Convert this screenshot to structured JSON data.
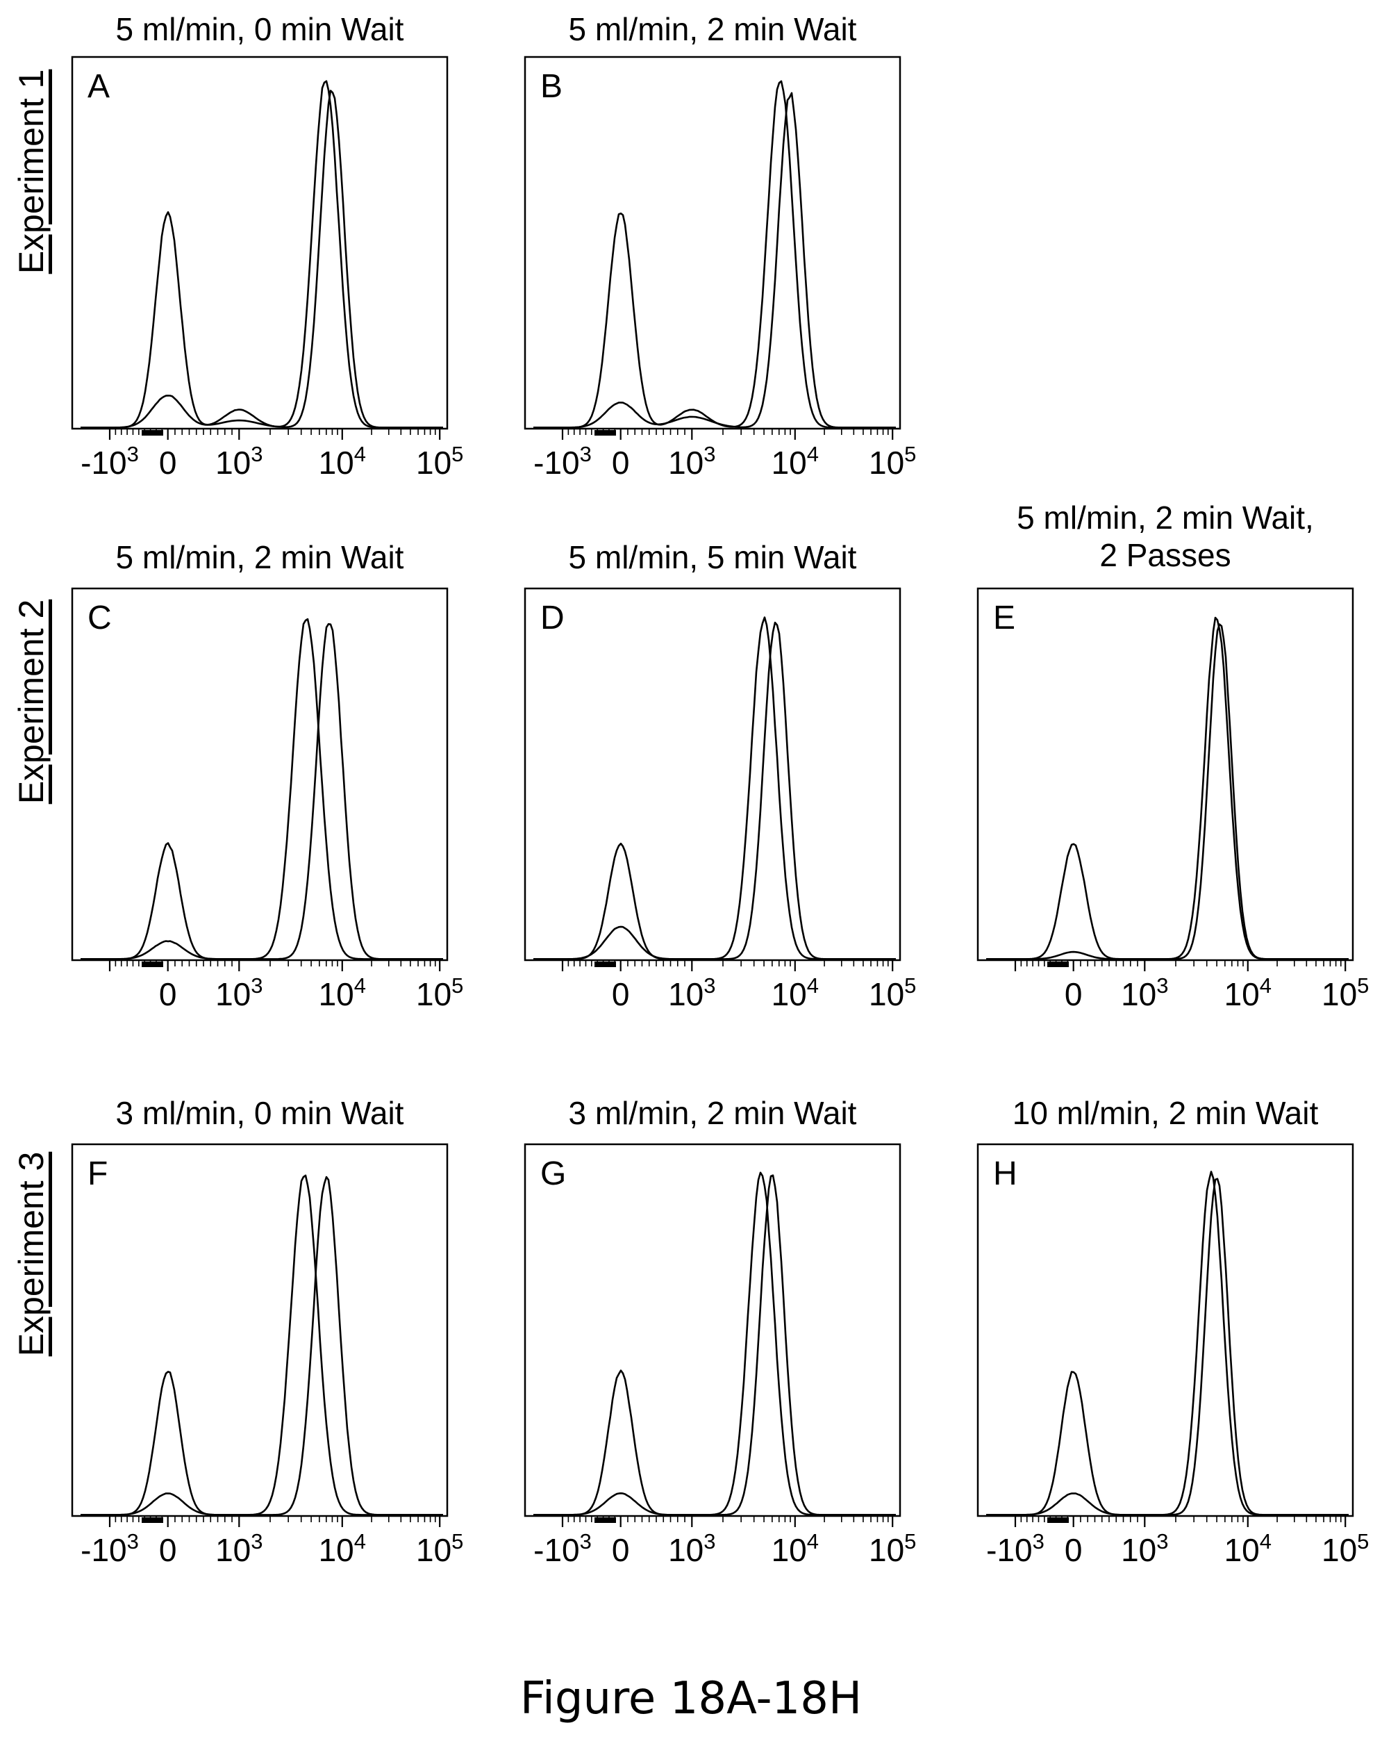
{
  "figure": {
    "caption": "Figure 18A-18H",
    "rows": [
      {
        "label": "Experiment 1"
      },
      {
        "label": "Experiment 2"
      },
      {
        "label": "Experiment 3"
      }
    ]
  },
  "colors": {
    "line": "#000000",
    "background": "#ffffff"
  },
  "chart_data": [
    {
      "type": "line",
      "letter": "A",
      "title": "5 ml/min, 0 min Wait",
      "x_scale": "biexponential",
      "xlim": [
        -2000,
        100000
      ],
      "x_ticks": [
        "-10^3",
        "0",
        "10^3",
        "10^4",
        "10^5"
      ],
      "grid": false,
      "legend": "none",
      "series": [
        {
          "peaks": [
            {
              "x": 0,
              "h": 0.6,
              "w": 0.032
            },
            {
              "x": 1000,
              "h": 0.05,
              "w": 0.04
            },
            {
              "x": 6900,
              "h": 0.97,
              "w": 0.034
            }
          ]
        },
        {
          "peaks": [
            {
              "x": 0,
              "h": 0.09,
              "w": 0.04
            },
            {
              "x": 1000,
              "h": 0.02,
              "w": 0.05
            },
            {
              "x": 8000,
              "h": 0.94,
              "w": 0.032
            }
          ]
        }
      ]
    },
    {
      "type": "line",
      "letter": "B",
      "title": "5 ml/min, 2 min Wait",
      "x_scale": "biexponential",
      "xlim": [
        -2000,
        100000
      ],
      "x_ticks": [
        "-10^3",
        "0",
        "10^3",
        "10^4",
        "10^5"
      ],
      "grid": false,
      "legend": "none",
      "series": [
        {
          "peaks": [
            {
              "x": 0,
              "h": 0.6,
              "w": 0.032
            },
            {
              "x": 1000,
              "h": 0.05,
              "w": 0.04
            },
            {
              "x": 7200,
              "h": 0.97,
              "w": 0.034
            }
          ]
        },
        {
          "peaks": [
            {
              "x": 0,
              "h": 0.07,
              "w": 0.04
            },
            {
              "x": 1000,
              "h": 0.03,
              "w": 0.05
            },
            {
              "x": 9000,
              "h": 0.93,
              "w": 0.032
            }
          ]
        }
      ]
    },
    {
      "type": "line",
      "letter": "C",
      "title": "5 ml/min, 2 min Wait",
      "x_scale": "biexponential",
      "xlim": [
        -2000,
        100000
      ],
      "x_ticks": [
        "",
        "0",
        "10^3",
        "10^4",
        "10^5"
      ],
      "grid": false,
      "legend": "none",
      "series": [
        {
          "peaks": [
            {
              "x": 0,
              "h": 0.32,
              "w": 0.032
            },
            {
              "x": 4500,
              "h": 0.95,
              "w": 0.036
            }
          ]
        },
        {
          "peaks": [
            {
              "x": 0,
              "h": 0.05,
              "w": 0.04
            },
            {
              "x": 7500,
              "h": 0.94,
              "w": 0.034
            }
          ]
        }
      ]
    },
    {
      "type": "line",
      "letter": "D",
      "title": "5 ml/min, 5 min Wait",
      "x_scale": "biexponential",
      "xlim": [
        -2000,
        100000
      ],
      "x_ticks": [
        "",
        "0",
        "10^3",
        "10^4",
        "10^5"
      ],
      "grid": false,
      "legend": "none",
      "series": [
        {
          "peaks": [
            {
              "x": 0,
              "h": 0.32,
              "w": 0.032
            },
            {
              "x": 5000,
              "h": 0.95,
              "w": 0.034
            }
          ]
        },
        {
          "peaks": [
            {
              "x": 0,
              "h": 0.09,
              "w": 0.04
            },
            {
              "x": 6500,
              "h": 0.94,
              "w": 0.032
            }
          ]
        }
      ]
    },
    {
      "type": "line",
      "letter": "E",
      "title": "5 ml/min, 2 min Wait,\n2 Passes",
      "x_scale": "biexponential",
      "xlim": [
        -2000,
        100000
      ],
      "x_ticks": [
        "",
        "0",
        "10^3",
        "10^4",
        "10^5"
      ],
      "grid": false,
      "legend": "none",
      "series": [
        {
          "peaks": [
            {
              "x": 0,
              "h": 0.32,
              "w": 0.032
            },
            {
              "x": 5000,
              "h": 0.95,
              "w": 0.032
            }
          ]
        },
        {
          "peaks": [
            {
              "x": 0,
              "h": 0.02,
              "w": 0.035
            },
            {
              "x": 5400,
              "h": 0.94,
              "w": 0.03
            }
          ]
        }
      ]
    },
    {
      "type": "line",
      "letter": "F",
      "title": "3 ml/min, 0 min Wait",
      "x_scale": "biexponential",
      "xlim": [
        -2000,
        100000
      ],
      "x_ticks": [
        "-10^3",
        "0",
        "10^3",
        "10^4",
        "10^5"
      ],
      "grid": false,
      "legend": "none",
      "series": [
        {
          "peaks": [
            {
              "x": 0,
              "h": 0.4,
              "w": 0.032
            },
            {
              "x": 4300,
              "h": 0.95,
              "w": 0.036
            }
          ]
        },
        {
          "peaks": [
            {
              "x": 0,
              "h": 0.06,
              "w": 0.04
            },
            {
              "x": 7000,
              "h": 0.94,
              "w": 0.034
            }
          ]
        }
      ]
    },
    {
      "type": "line",
      "letter": "G",
      "title": "3 ml/min, 2 min Wait",
      "x_scale": "biexponential",
      "xlim": [
        -2000,
        100000
      ],
      "x_ticks": [
        "-10^3",
        "0",
        "10^3",
        "10^4",
        "10^5"
      ],
      "grid": false,
      "legend": "none",
      "series": [
        {
          "peaks": [
            {
              "x": 0,
              "h": 0.4,
              "w": 0.032
            },
            {
              "x": 4700,
              "h": 0.95,
              "w": 0.034
            }
          ]
        },
        {
          "peaks": [
            {
              "x": 0,
              "h": 0.06,
              "w": 0.04
            },
            {
              "x": 6000,
              "h": 0.94,
              "w": 0.032
            }
          ]
        }
      ]
    },
    {
      "type": "line",
      "letter": "H",
      "title": "10 ml/min, 2 min Wait",
      "x_scale": "biexponential",
      "xlim": [
        -2000,
        100000
      ],
      "x_ticks": [
        "-10^3",
        "0",
        "10^3",
        "10^4",
        "10^5"
      ],
      "grid": false,
      "legend": "none",
      "series": [
        {
          "peaks": [
            {
              "x": 0,
              "h": 0.4,
              "w": 0.032
            },
            {
              "x": 4400,
              "h": 0.95,
              "w": 0.032
            }
          ]
        },
        {
          "peaks": [
            {
              "x": 0,
              "h": 0.06,
              "w": 0.04
            },
            {
              "x": 5000,
              "h": 0.94,
              "w": 0.03
            }
          ]
        }
      ]
    }
  ]
}
